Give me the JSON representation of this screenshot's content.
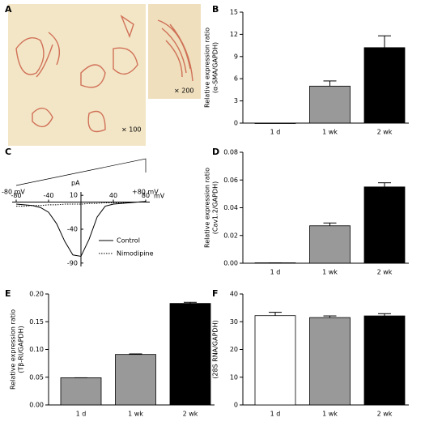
{
  "image_panel": {
    "panel": "A",
    "labels": [
      "× 100",
      "× 200"
    ]
  },
  "chart_data": [
    {
      "type": "bar",
      "panel": "B",
      "categories": [
        "1 d",
        "1 wk",
        "2 wk"
      ],
      "values": [
        0,
        5.0,
        10.2
      ],
      "errors": [
        0,
        0.7,
        1.6
      ],
      "colors": [
        "#ffffff",
        "#999999",
        "#000000"
      ],
      "ylabel": [
        "Relative expression ratio",
        "(α-SMA/GAPDH)"
      ],
      "ylim": [
        0,
        15
      ],
      "yticks": [
        0,
        3,
        6,
        9,
        12,
        15
      ]
    },
    {
      "type": "line",
      "panel": "C",
      "protocol_labels": [
        "-80 mV",
        "+80 mV"
      ],
      "xunit": "mV",
      "yunit": "pA",
      "x": [
        -80,
        -70,
        -60,
        -50,
        -40,
        -30,
        -20,
        -10,
        0,
        10,
        20,
        30,
        40,
        50,
        60,
        70,
        80
      ],
      "series": [
        {
          "name": "Control",
          "color": "#000000",
          "style": "solid",
          "values": [
            -3,
            -4,
            -5,
            -8,
            -15,
            -32,
            -58,
            -78,
            -80,
            -55,
            -22,
            -6,
            -3,
            -2,
            -1,
            0,
            1
          ]
        },
        {
          "name": "Nimodipine",
          "color": "#000000",
          "style": "dotted",
          "values": [
            -6,
            -6,
            -5,
            -5,
            -4,
            -4,
            -3,
            -3,
            -3,
            -2,
            -2,
            -1,
            -1,
            -1,
            0,
            0,
            1
          ]
        }
      ],
      "xlim": [
        -85,
        85
      ],
      "xticks": [
        -80,
        -40,
        40,
        80
      ],
      "ylim": [
        -95,
        15
      ],
      "yticks": [
        10,
        -40,
        -90
      ]
    },
    {
      "type": "bar",
      "panel": "D",
      "categories": [
        "1 d",
        "1 wk",
        "2 wk"
      ],
      "values": [
        0.0003,
        0.027,
        0.055
      ],
      "errors": [
        0,
        0.002,
        0.003
      ],
      "colors": [
        "#ffffff",
        "#999999",
        "#000000"
      ],
      "ylabel": [
        "Relative expression ratio",
        "(Cav1.2/GAPDH)"
      ],
      "ylim": [
        0,
        0.08
      ],
      "yticks": [
        {
          "value": 0,
          "label": "0.00"
        },
        0.02,
        0.04,
        0.06,
        0.08
      ]
    },
    {
      "type": "bar",
      "panel": "E",
      "categories": [
        "1 d",
        "1 wk",
        "2 wk"
      ],
      "values": [
        0.049,
        0.091,
        0.183
      ],
      "errors": [
        0,
        0.001,
        0.002
      ],
      "colors": [
        "#999999",
        "#999999",
        "#000000"
      ],
      "ylabel": [
        "Relative expression ratio",
        "(Tβ-RI/GAPDH)"
      ],
      "ylim": [
        0,
        0.2
      ],
      "yticks": [
        {
          "value": 0,
          "label": "0.00"
        },
        0.05,
        {
          "value": 0.1,
          "label": "0.10"
        },
        0.15,
        {
          "value": 0.2,
          "label": "0.20"
        }
      ]
    },
    {
      "type": "bar",
      "panel": "F",
      "categories": [
        "1 d",
        "1 wk",
        "2 wk"
      ],
      "values": [
        32.2,
        31.5,
        32.1
      ],
      "errors": [
        1.2,
        0.6,
        0.8
      ],
      "colors": [
        "#ffffff",
        "#999999",
        "#000000"
      ],
      "ylabel": [
        "Relative expression ratio",
        "(28S RNA/GAPDH)"
      ],
      "ylim": [
        0,
        40
      ],
      "yticks": [
        0,
        10,
        20,
        30,
        40
      ]
    }
  ]
}
